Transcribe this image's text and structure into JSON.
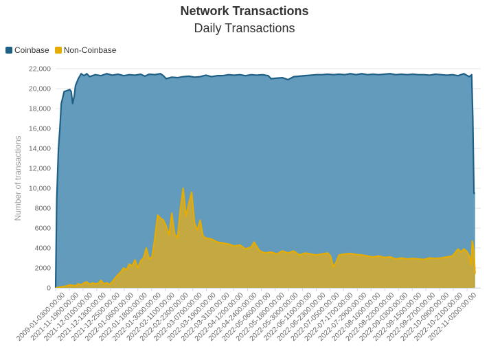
{
  "title": "Network Transactions",
  "subtitle": "Daily Transactions",
  "legend": [
    {
      "name": "Coinbase",
      "color": "#1f5f85"
    },
    {
      "name": "Non-Coinbase",
      "color": "#e6ac00"
    }
  ],
  "chart_data": {
    "type": "area",
    "title": "Network Transactions",
    "subtitle": "Daily Transactions",
    "ylabel": "Number of transactions",
    "ylim": [
      0,
      22000
    ],
    "yticks": [
      0,
      2000,
      4000,
      6000,
      8000,
      10000,
      12000,
      14000,
      16000,
      18000,
      20000,
      22000
    ],
    "ytick_labels": [
      "0",
      "2000",
      "4000",
      "6000",
      "8000",
      "10,000",
      "12,000",
      "14,000",
      "16,000",
      "18,000",
      "20,000",
      "22,000"
    ],
    "xtick_labels": [
      "2009-01-0300:00:00",
      "2021-11-1900:00:00",
      "2021-12-0100:00:00",
      "2021-12-1300:00:00",
      "2021-12-2500:00:00",
      "2022-01-0600:00:00",
      "2022-01-1800:00:00",
      "2022-01-3000:00:00",
      "2022-02-1100:00:00",
      "2022-02-2300:00:00",
      "2022-03-0700:00:00",
      "2022-03-1900:00:00",
      "2022-03-3100:00:00",
      "2022-04-1200:00:00",
      "2022-04-2400:00:00",
      "2022-05-0600:00:00",
      "2022-05-1800:00:00",
      "2022-05-3000:00:00",
      "2022-06-1100:00:00",
      "2022-06-2300:00:00",
      "2022-07-0500:00:00",
      "2022-07-1700:00:00",
      "2022-07-2900:00:00",
      "2022-08-1000:00:00",
      "2022-08-2200:00:00",
      "2022-09-0300:00:00",
      "2022-09-1500:00:00",
      "2022-09-2700:00:00",
      "2022-10-0900:00:00",
      "2022-10-2100:00:00",
      "2022-11-0200:00:00"
    ],
    "x_index_range": [
      0,
      150
    ],
    "series": [
      {
        "name": "Coinbase",
        "color": "#1f5f85",
        "fill": "#5b96b8",
        "points": [
          [
            0,
            0
          ],
          [
            0.4,
            9000
          ],
          [
            1,
            14000
          ],
          [
            1.5,
            16000
          ],
          [
            2,
            18500
          ],
          [
            3,
            19700
          ],
          [
            4,
            19800
          ],
          [
            5,
            19900
          ],
          [
            5.5,
            19700
          ],
          [
            6,
            18500
          ],
          [
            6.6,
            19300
          ],
          [
            7,
            20300
          ],
          [
            8,
            21000
          ],
          [
            9,
            21500
          ],
          [
            10,
            21300
          ],
          [
            11,
            21500
          ],
          [
            12,
            21200
          ],
          [
            14,
            21400
          ],
          [
            16,
            21300
          ],
          [
            18,
            21500
          ],
          [
            20,
            21350
          ],
          [
            22,
            21450
          ],
          [
            24,
            21300
          ],
          [
            26,
            21400
          ],
          [
            28,
            21350
          ],
          [
            30,
            21450
          ],
          [
            31.5,
            21250
          ],
          [
            33,
            21450
          ],
          [
            35,
            21400
          ],
          [
            37,
            21500
          ],
          [
            38,
            21300
          ],
          [
            39,
            21000
          ],
          [
            41,
            21150
          ],
          [
            43,
            21100
          ],
          [
            45,
            21200
          ],
          [
            47,
            21250
          ],
          [
            49,
            21150
          ],
          [
            51,
            21200
          ],
          [
            53,
            21350
          ],
          [
            55,
            21200
          ],
          [
            57,
            21300
          ],
          [
            59,
            21300
          ],
          [
            61,
            21400
          ],
          [
            63,
            21350
          ],
          [
            65,
            21400
          ],
          [
            67,
            21300
          ],
          [
            69,
            21400
          ],
          [
            71,
            21350
          ],
          [
            73,
            21400
          ],
          [
            75,
            21300
          ],
          [
            76,
            21000
          ],
          [
            78,
            21050
          ],
          [
            80,
            21100
          ],
          [
            82,
            20900
          ],
          [
            84,
            21200
          ],
          [
            86,
            21250
          ],
          [
            88,
            21300
          ],
          [
            90,
            21350
          ],
          [
            92,
            21400
          ],
          [
            94,
            21400
          ],
          [
            96,
            21450
          ],
          [
            98,
            21400
          ],
          [
            100,
            21450
          ],
          [
            102,
            21400
          ],
          [
            104,
            21500
          ],
          [
            106,
            21400
          ],
          [
            108,
            21500
          ],
          [
            110,
            21400
          ],
          [
            112,
            21450
          ],
          [
            114,
            21400
          ],
          [
            116,
            21450
          ],
          [
            118,
            21500
          ],
          [
            120,
            21400
          ],
          [
            122,
            21450
          ],
          [
            124,
            21400
          ],
          [
            126,
            21450
          ],
          [
            128,
            21400
          ],
          [
            130,
            21400
          ],
          [
            132,
            21350
          ],
          [
            134,
            21450
          ],
          [
            136,
            21400
          ],
          [
            138,
            21350
          ],
          [
            140,
            21400
          ],
          [
            142,
            21300
          ],
          [
            144,
            21500
          ],
          [
            145,
            21350
          ],
          [
            146,
            21200
          ],
          [
            146.8,
            21400
          ],
          [
            147.2,
            17000
          ],
          [
            147.6,
            9500
          ],
          [
            148,
            9500
          ]
        ]
      },
      {
        "name": "Non-Coinbase",
        "color": "#e6ac00",
        "fill": "#c9a93a",
        "points": [
          [
            0,
            0
          ],
          [
            2,
            100
          ],
          [
            4,
            200
          ],
          [
            5,
            300
          ],
          [
            6,
            250
          ],
          [
            7,
            200
          ],
          [
            8,
            400
          ],
          [
            9,
            300
          ],
          [
            10,
            500
          ],
          [
            11,
            600
          ],
          [
            12,
            350
          ],
          [
            13,
            500
          ],
          [
            14,
            400
          ],
          [
            15,
            450
          ],
          [
            16,
            750
          ],
          [
            17,
            400
          ],
          [
            18,
            500
          ],
          [
            19,
            350
          ],
          [
            20,
            600
          ],
          [
            21,
            1000
          ],
          [
            22,
            1300
          ],
          [
            23,
            1600
          ],
          [
            24,
            2000
          ],
          [
            25,
            1800
          ],
          [
            26,
            2400
          ],
          [
            27,
            2200
          ],
          [
            28,
            2800
          ],
          [
            29,
            2000
          ],
          [
            30,
            2700
          ],
          [
            31,
            3000
          ],
          [
            32,
            4000
          ],
          [
            33,
            2900
          ],
          [
            34,
            3100
          ],
          [
            35,
            5000
          ],
          [
            36,
            7300
          ],
          [
            37,
            7000
          ],
          [
            38,
            6800
          ],
          [
            39,
            6200
          ],
          [
            40,
            5300
          ],
          [
            41,
            7500
          ],
          [
            42,
            5400
          ],
          [
            43,
            5000
          ],
          [
            44,
            7900
          ],
          [
            45,
            10000
          ],
          [
            46,
            7200
          ],
          [
            47,
            8500
          ],
          [
            48,
            9600
          ],
          [
            49,
            6500
          ],
          [
            50,
            5800
          ],
          [
            51,
            6800
          ],
          [
            52,
            5200
          ],
          [
            53,
            5000
          ],
          [
            55,
            4900
          ],
          [
            57,
            4600
          ],
          [
            59,
            4500
          ],
          [
            61,
            4400
          ],
          [
            63,
            4200
          ],
          [
            65,
            4300
          ],
          [
            67,
            3900
          ],
          [
            69,
            4100
          ],
          [
            70,
            4600
          ],
          [
            72,
            3700
          ],
          [
            74,
            3500
          ],
          [
            76,
            3600
          ],
          [
            78,
            3400
          ],
          [
            80,
            3700
          ],
          [
            82,
            3500
          ],
          [
            84,
            3700
          ],
          [
            86,
            3300
          ],
          [
            88,
            3500
          ],
          [
            90,
            3400
          ],
          [
            92,
            3300
          ],
          [
            94,
            3400
          ],
          [
            96,
            3500
          ],
          [
            97,
            3200
          ],
          [
            98,
            2100
          ],
          [
            99,
            2600
          ],
          [
            100,
            3300
          ],
          [
            102,
            3400
          ],
          [
            104,
            3450
          ],
          [
            106,
            3350
          ],
          [
            108,
            3300
          ],
          [
            110,
            3200
          ],
          [
            112,
            3100
          ],
          [
            114,
            3200
          ],
          [
            116,
            3050
          ],
          [
            118,
            3100
          ],
          [
            120,
            2900
          ],
          [
            122,
            3000
          ],
          [
            124,
            2900
          ],
          [
            126,
            2950
          ],
          [
            128,
            2900
          ],
          [
            130,
            2850
          ],
          [
            132,
            3000
          ],
          [
            134,
            2950
          ],
          [
            136,
            3000
          ],
          [
            138,
            3100
          ],
          [
            140,
            3200
          ],
          [
            142,
            3900
          ],
          [
            143,
            3600
          ],
          [
            144,
            3900
          ],
          [
            145,
            3700
          ],
          [
            146,
            3200
          ],
          [
            146.6,
            2300
          ],
          [
            147,
            4700
          ],
          [
            147.6,
            3700
          ],
          [
            148,
            1400
          ]
        ]
      }
    ]
  }
}
